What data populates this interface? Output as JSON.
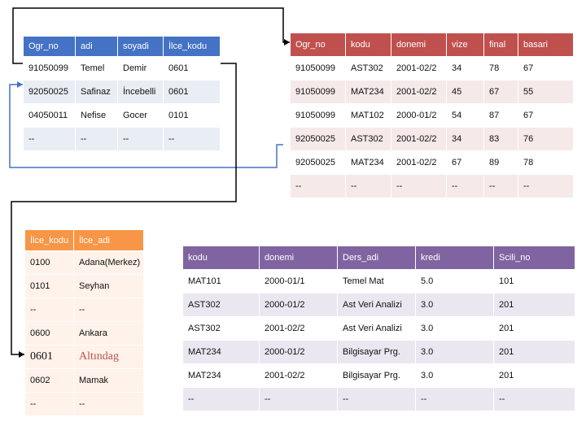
{
  "colors": {
    "students": "#4472c4",
    "grades": "#c0504d",
    "districts": "#f79646",
    "courses": "#8064a2",
    "link": "#000000",
    "link_blue": "#4472c4"
  },
  "students_table": {
    "headers": [
      "Ogr_no",
      "adi",
      "soyadi",
      "İlce_kodu"
    ],
    "rows": [
      [
        "91050099",
        "Temel",
        "Demir",
        "0601"
      ],
      [
        "92050025",
        "Safinaz",
        "İncebelli",
        "0601"
      ],
      [
        "04050011",
        "Nefise",
        "Gocer",
        "0101"
      ],
      [
        "--",
        "--",
        "--",
        "--"
      ]
    ]
  },
  "grades_table": {
    "headers": [
      "Ogr_no",
      "kodu",
      "donemi",
      "vize",
      "final",
      "basari"
    ],
    "rows": [
      [
        "91050099",
        "AST302",
        "2001-02/2",
        "34",
        "78",
        "67"
      ],
      [
        "91050099",
        "MAT234",
        "2001-02/2",
        "45",
        "67",
        "55"
      ],
      [
        "91050099",
        "MAT102",
        "2000-01/2",
        "54",
        "87",
        "67"
      ],
      [
        "92050025",
        "AST302",
        "2001-02/2",
        "34",
        "83",
        "76"
      ],
      [
        "92050025",
        "MAT234",
        "2001-02/2",
        "67",
        "89",
        "78"
      ],
      [
        "--",
        "--",
        "--",
        "--",
        "--",
        "--"
      ]
    ]
  },
  "districts_table": {
    "headers": [
      "İlce_kodu",
      "İlce_adi"
    ],
    "rows": [
      [
        "0100",
        "Adana(Merkez)"
      ],
      [
        "0101",
        "Seyhan"
      ],
      [
        "--",
        "--"
      ],
      [
        "0600",
        "Ankara"
      ],
      [
        "0601",
        "Altındag"
      ],
      [
        "0602",
        "Mamak"
      ],
      [
        "--",
        "--"
      ]
    ]
  },
  "courses_table": {
    "headers": [
      "kodu",
      "donemi",
      "Ders_adi",
      "kredi",
      "Scili_no"
    ],
    "rows": [
      [
        "MAT101",
        "2000-01/1",
        "Temel Mat",
        "5.0",
        "101"
      ],
      [
        "AST302",
        "2000-01/2",
        "Ast Veri Analizi",
        "3.0",
        "201"
      ],
      [
        "AST302",
        "2001-02/2",
        "Ast Veri Analizi",
        "3.0",
        "201"
      ],
      [
        "MAT234",
        "2000-01/2",
        "Bilgisayar Prg.",
        "3.0",
        "201"
      ],
      [
        "MAT234",
        "2001-02/2",
        "Bilgisayar Prg.",
        "3.0",
        "201"
      ],
      [
        "--",
        "--",
        "--",
        "--",
        "--"
      ]
    ]
  }
}
